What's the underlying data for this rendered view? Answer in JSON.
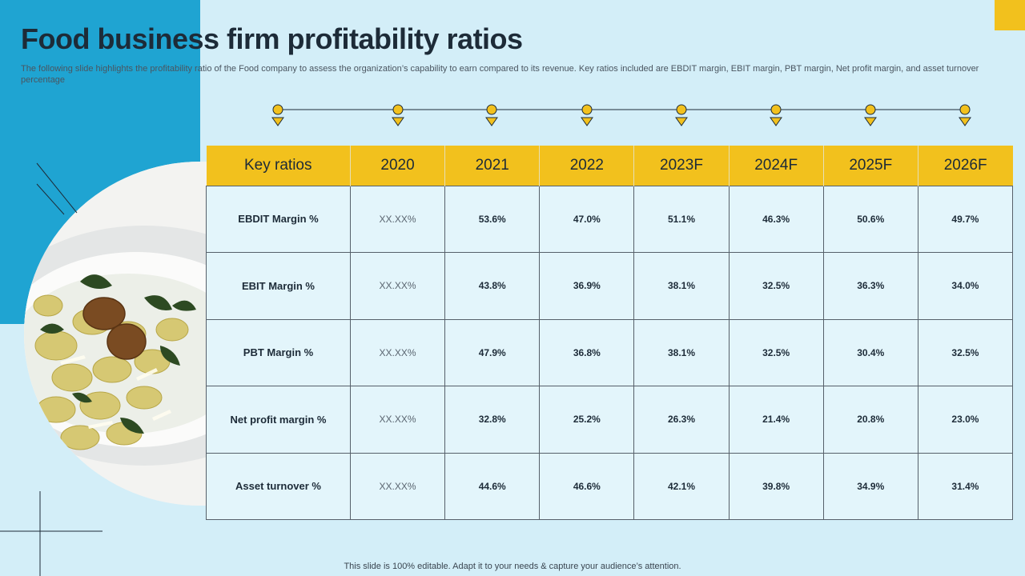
{
  "title": "Food business firm profitability ratios",
  "subtitle": "The following slide highlights the profitability ratio of the Food company to  assess the organization’s capability to earn compared to its revenue. Key ratios included are EBDIT margin, EBIT margin, PBT margin, Net profit margin, and asset turnover percentage",
  "colors": {
    "accent_blue": "#1fa4d2",
    "accent_yellow": "#f2c11d",
    "background": "#d3eef8",
    "cell": "#e3f5fb"
  },
  "table": {
    "headers": [
      "Key ratios",
      "2020",
      "2021",
      "2022",
      "2023F",
      "2024F",
      "2025F",
      "2026F"
    ],
    "rows": [
      {
        "label": "EBDIT Margin %",
        "values": [
          "XX.XX%",
          "53.6%",
          "47.0%",
          "51.1%",
          "46.3%",
          "50.6%",
          "49.7%"
        ]
      },
      {
        "label": "EBIT Margin %",
        "values": [
          "XX.XX%",
          "43.8%",
          "36.9%",
          "38.1%",
          "32.5%",
          "36.3%",
          "34.0%"
        ]
      },
      {
        "label": "PBT Margin %",
        "values": [
          "XX.XX%",
          "47.9%",
          "36.8%",
          "38.1%",
          "32.5%",
          "30.4%",
          "32.5%"
        ]
      },
      {
        "label": "Net profit margin %",
        "values": [
          "XX.XX%",
          "32.8%",
          "25.2%",
          "26.3%",
          "21.4%",
          "20.8%",
          "23.0%"
        ]
      },
      {
        "label": "Asset turnover %",
        "values": [
          "XX.XX%",
          "44.6%",
          "46.6%",
          "42.1%",
          "39.8%",
          "34.9%",
          "31.4%"
        ]
      }
    ]
  },
  "footer": "This slide is 100% editable. Adapt it to your needs & capture your audience’s attention."
}
